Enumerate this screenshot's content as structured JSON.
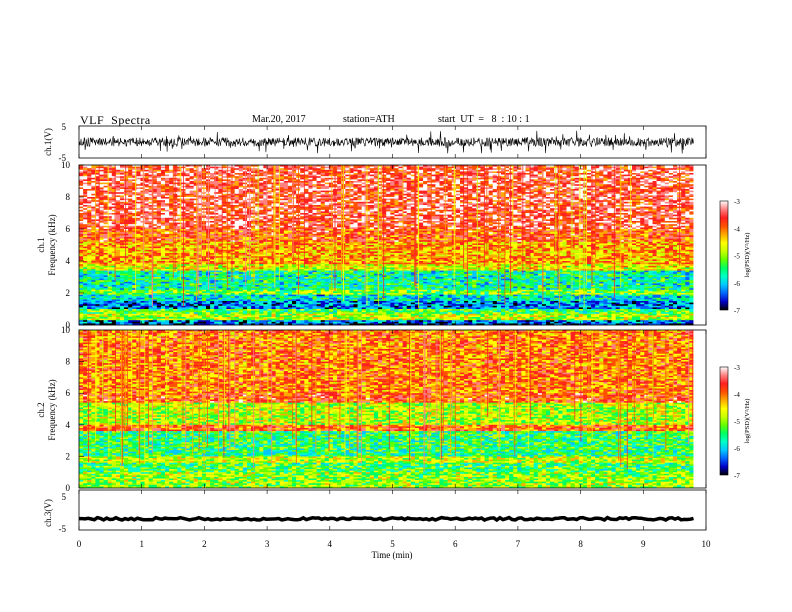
{
  "header": {
    "title": "VLF  Spectra",
    "date": "Mar.20, 2017",
    "station": "station=ATH",
    "start_ut": "start  UT  =   8  : 10 : 1"
  },
  "colors": {
    "colormap": [
      "#000000",
      "#0000c8",
      "#0064ff",
      "#00c8ff",
      "#00ffc8",
      "#00ff64",
      "#64ff00",
      "#c8ff00",
      "#ffff00",
      "#ffaa00",
      "#ff5000",
      "#ff2020",
      "#ff8080",
      "#ffffff"
    ],
    "trace": "#000000"
  },
  "chart_data": [
    {
      "type": "line",
      "ylabel": "ch.1(V)",
      "y_ticks": [
        "5",
        "-5"
      ],
      "ylim": [
        -5,
        5
      ],
      "series": [
        {
          "description": "broadband waveform, noisy around zero",
          "x": [
            0,
            9.8
          ],
          "y_mean": 0,
          "y_spread": [
            -2,
            2
          ]
        }
      ]
    },
    {
      "type": "heatmap",
      "ylabel": "ch.1\nFrequency  (kHz)",
      "y_ticks": [
        "10",
        "8",
        "6",
        "4",
        "2",
        "0"
      ],
      "ylim": [
        0,
        10
      ],
      "xlim": [
        0,
        9.8
      ],
      "colorbar": {
        "label": "log(PSD)(V²/Hz)",
        "ticks": [
          "-3",
          "-4",
          "-5",
          "-6",
          "-7"
        ],
        "range": [
          -7,
          -3
        ]
      },
      "bands_khz_to_logpsd": [
        {
          "f": [
            0,
            0.15
          ],
          "level": -6.6
        },
        {
          "f": [
            0.15,
            0.3
          ],
          "level": -6.2
        },
        {
          "f": [
            0.3,
            0.7
          ],
          "level": -4.9
        },
        {
          "f": [
            0.7,
            1.0
          ],
          "level": -5.3
        },
        {
          "f": [
            1.0,
            1.5
          ],
          "level": -6.2
        },
        {
          "f": [
            1.5,
            1.9
          ],
          "level": -5.8
        },
        {
          "f": [
            1.9,
            2.2
          ],
          "level": -5.1
        },
        {
          "f": [
            2.2,
            3.4
          ],
          "level": -5.6
        },
        {
          "f": [
            3.4,
            3.8
          ],
          "level": -4.7
        },
        {
          "f": [
            3.8,
            5.2
          ],
          "level": -4.3
        },
        {
          "f": [
            5.2,
            6.0
          ],
          "level": -3.9
        },
        {
          "f": [
            6.0,
            10.0
          ],
          "level": -3.6
        }
      ]
    },
    {
      "type": "heatmap",
      "ylabel": "ch.2\nFrequency  (kHz)",
      "y_ticks": [
        "10",
        "8",
        "6",
        "4",
        "2",
        "0"
      ],
      "ylim": [
        0,
        10
      ],
      "xlim": [
        0,
        9.8
      ],
      "colorbar": {
        "label": "log(PSD)(V²/Hz)",
        "ticks": [
          "-3",
          "-4",
          "-5",
          "-6",
          "-7"
        ],
        "range": [
          -7,
          -3
        ]
      },
      "bands_khz_to_logpsd": [
        {
          "f": [
            0,
            0.4
          ],
          "level": -5.0
        },
        {
          "f": [
            0.4,
            1.0
          ],
          "level": -5.0
        },
        {
          "f": [
            1.0,
            1.6
          ],
          "level": -5.3
        },
        {
          "f": [
            1.6,
            2.0
          ],
          "level": -4.8
        },
        {
          "f": [
            2.0,
            2.4
          ],
          "level": -5.5
        },
        {
          "f": [
            2.4,
            3.6
          ],
          "level": -5.4
        },
        {
          "f": [
            3.6,
            4.0
          ],
          "level": -4.0
        },
        {
          "f": [
            4.0,
            5.4
          ],
          "level": -4.9
        },
        {
          "f": [
            5.4,
            6.0
          ],
          "level": -3.9
        },
        {
          "f": [
            6.0,
            10.0
          ],
          "level": -4.1
        }
      ]
    },
    {
      "type": "line",
      "ylabel": "ch.3(V)",
      "y_ticks": [
        "5",
        "-5"
      ],
      "ylim": [
        -5,
        5
      ],
      "xlabel": "Time  (min)",
      "x_ticks": [
        "0",
        "1",
        "2",
        "3",
        "4",
        "5",
        "6",
        "7",
        "8",
        "9",
        "10"
      ],
      "xlim": [
        0,
        10
      ],
      "series": [
        {
          "description": "near-constant thick line",
          "x": [
            0,
            9.8
          ],
          "y_mean": -2.2,
          "y_spread": [
            -2.5,
            -1.9
          ]
        }
      ]
    }
  ]
}
